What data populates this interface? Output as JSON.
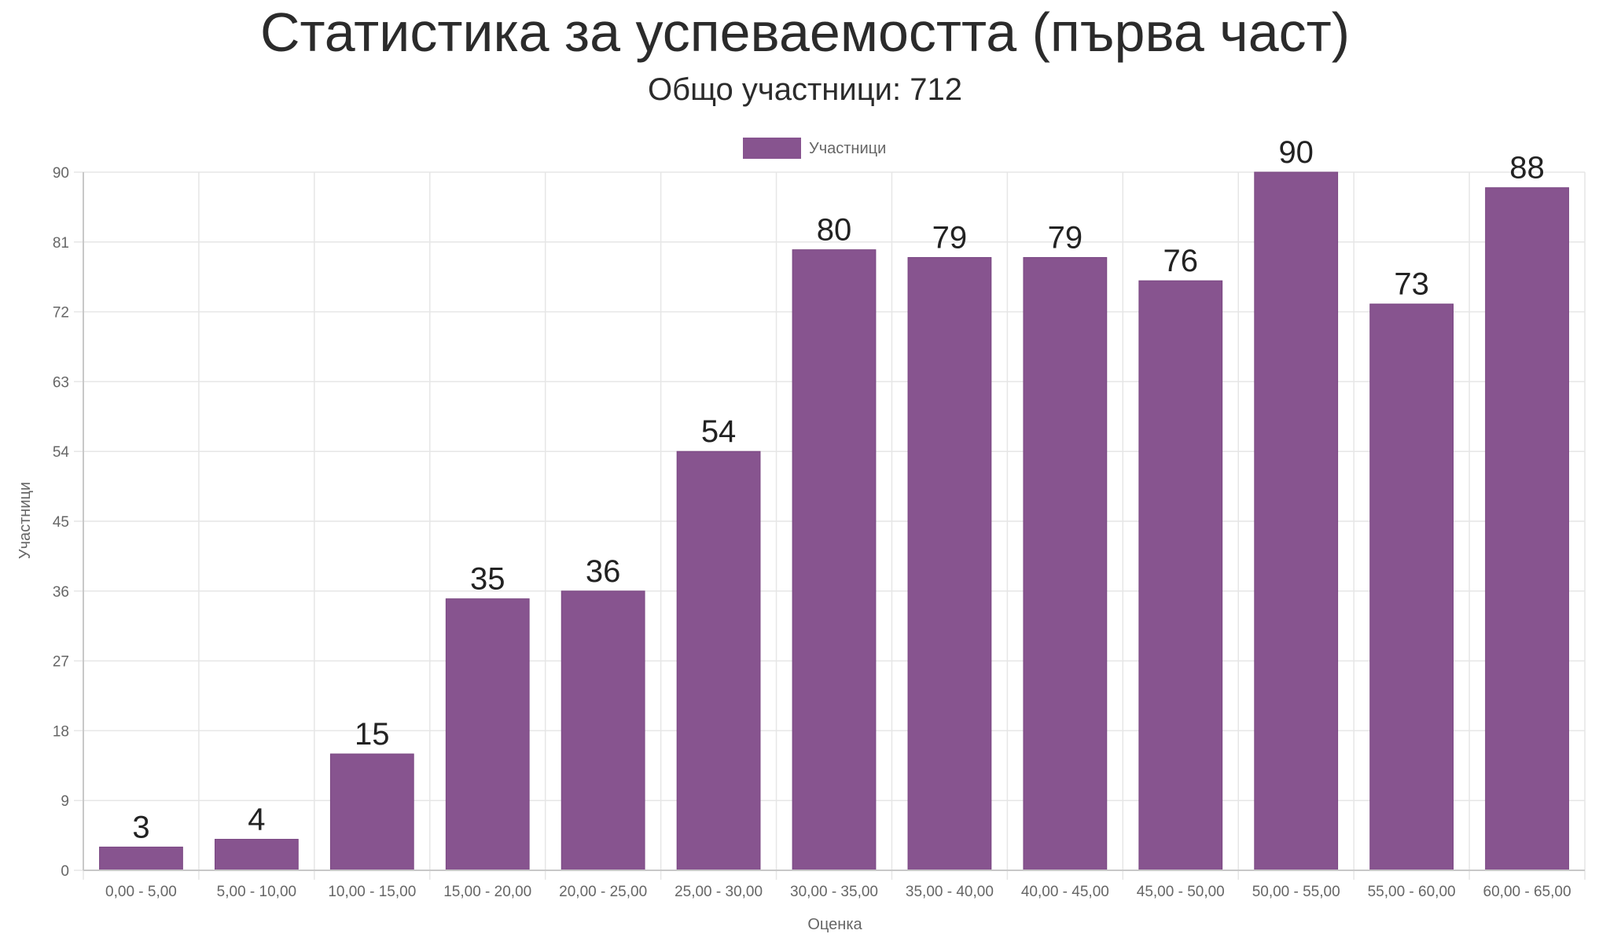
{
  "chart_data": {
    "type": "bar",
    "title": "Статистика за успеваемостта (първа част)",
    "subtitle": "Общо участници: 712",
    "xlabel": "Оценка",
    "ylabel": "Участници",
    "legend": {
      "position": "top-center",
      "entries": [
        "Участници"
      ]
    },
    "grid": true,
    "ylim": [
      0,
      90
    ],
    "yticks": [
      0,
      9,
      18,
      27,
      36,
      45,
      54,
      63,
      72,
      81,
      90
    ],
    "categories": [
      "0,00 - 5,00",
      "5,00 - 10,00",
      "10,00 - 15,00",
      "15,00 - 20,00",
      "20,00 - 25,00",
      "25,00 - 30,00",
      "30,00 - 35,00",
      "35,00 - 40,00",
      "40,00 - 45,00",
      "45,00 - 50,00",
      "50,00 - 55,00",
      "55,00 - 60,00",
      "60,00 - 65,00"
    ],
    "series": [
      {
        "name": "Участници",
        "color": "#87548f",
        "values": [
          3,
          4,
          15,
          35,
          36,
          54,
          80,
          79,
          79,
          76,
          90,
          73,
          88
        ]
      }
    ]
  }
}
